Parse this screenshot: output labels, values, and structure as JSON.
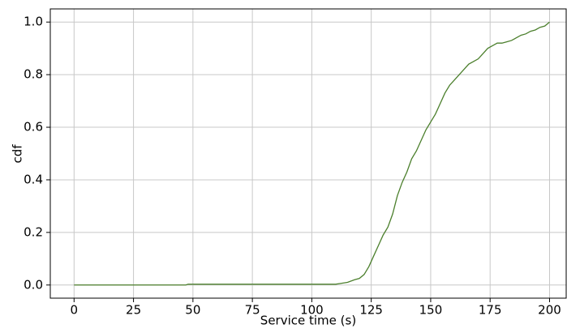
{
  "chart_data": {
    "type": "line",
    "xlabel": "Service time  (s)",
    "ylabel": "cdf",
    "x": [
      0,
      47,
      48,
      110,
      112,
      115,
      118,
      120,
      122,
      124,
      126,
      128,
      130,
      132,
      134,
      136,
      138,
      140,
      142,
      144,
      146,
      148,
      150,
      152,
      154,
      156,
      158,
      160,
      162,
      164,
      166,
      168,
      170,
      172,
      174,
      176,
      178,
      180,
      182,
      184,
      186,
      188,
      190,
      192,
      194,
      196,
      198,
      200
    ],
    "values": [
      0,
      0,
      0.003,
      0.003,
      0.006,
      0.01,
      0.02,
      0.025,
      0.04,
      0.07,
      0.11,
      0.15,
      0.19,
      0.22,
      0.27,
      0.34,
      0.39,
      0.43,
      0.48,
      0.51,
      0.55,
      0.59,
      0.62,
      0.65,
      0.69,
      0.73,
      0.76,
      0.78,
      0.8,
      0.82,
      0.84,
      0.85,
      0.86,
      0.88,
      0.9,
      0.91,
      0.92,
      0.92,
      0.925,
      0.93,
      0.94,
      0.95,
      0.955,
      0.965,
      0.97,
      0.98,
      0.985,
      1.0
    ],
    "color": "#4b7f2c",
    "xlim": [
      -10,
      207
    ],
    "ylim": [
      -0.05,
      1.05
    ],
    "xticks": [
      0,
      25,
      50,
      75,
      100,
      125,
      150,
      175,
      200
    ],
    "yticks": [
      {
        "value": 0,
        "label": "0.0"
      },
      0.2,
      0.4,
      0.6,
      0.8,
      {
        "value": 1,
        "label": "1.0"
      }
    ],
    "grid": true
  }
}
